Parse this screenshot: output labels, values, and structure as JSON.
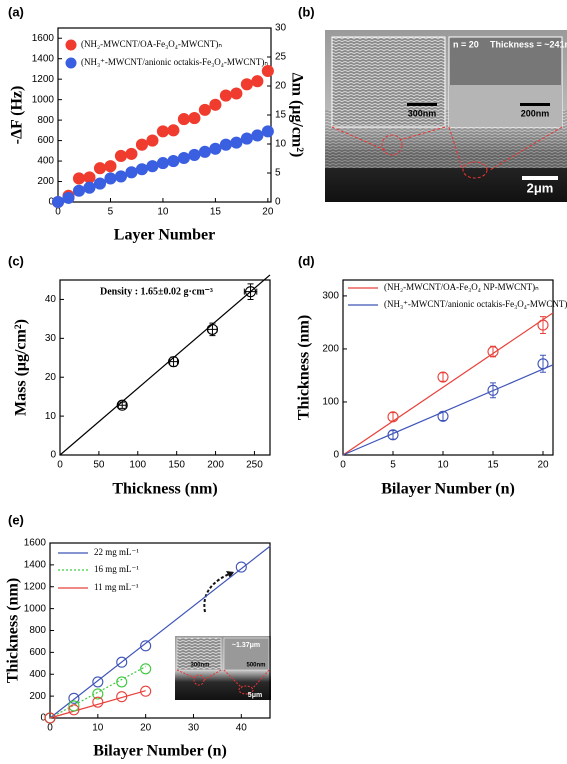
{
  "chart_data": [
    {
      "type": "scatter",
      "label": "(a)",
      "xlabel": "Layer Number",
      "ylabel": "-ΔF (Hz)",
      "y2label": "Δm (μg/cm²)",
      "xlim": [
        0,
        20.3
      ],
      "xticks": [
        0,
        5,
        10,
        15,
        20
      ],
      "ylim": [
        0,
        1700
      ],
      "yticks": [
        0,
        200,
        400,
        600,
        800,
        1000,
        1200,
        1400,
        1600
      ],
      "y2lim": [
        0,
        30
      ],
      "y2ticks": [
        0,
        5,
        10,
        15,
        20,
        25,
        30
      ],
      "legend": "upper left",
      "series": [
        {
          "name": "(NH₂-MWCNT/OA-Fe₃O₄-MWCNT)ₙ",
          "color": "#f03c2e",
          "marker": "filled",
          "x": [
            0,
            1,
            2,
            3,
            4,
            5,
            6,
            7,
            8,
            9,
            10,
            11,
            12,
            13,
            14,
            15,
            16,
            17,
            18,
            19,
            20
          ],
          "values": [
            0,
            60,
            230,
            240,
            330,
            350,
            450,
            470,
            560,
            600,
            690,
            700,
            810,
            820,
            900,
            950,
            1040,
            1060,
            1150,
            1180,
            1280
          ]
        },
        {
          "name": "(NH₃⁺-MWCNT/anionic octakis-Fe₃O₄-MWCNT)ₙ",
          "color": "#3a5fe0",
          "marker": "filled",
          "x": [
            0,
            1,
            2,
            3,
            4,
            5,
            6,
            7,
            8,
            9,
            10,
            11,
            12,
            13,
            14,
            15,
            16,
            17,
            18,
            19,
            20
          ],
          "values": [
            0,
            40,
            110,
            140,
            180,
            230,
            250,
            290,
            320,
            350,
            380,
            400,
            430,
            460,
            490,
            520,
            560,
            580,
            620,
            650,
            690
          ]
        }
      ]
    },
    {
      "type": "scatter",
      "label": "(c)",
      "xlabel": "Thickness (nm)",
      "ylabel": "Mass (μg/cm²)",
      "annotation": "Density : 1.65±0.02 g·cm⁻³",
      "xlim": [
        0,
        270
      ],
      "xticks": [
        0,
        50,
        100,
        150,
        200,
        250
      ],
      "ylim": [
        0,
        45
      ],
      "yticks": [
        0,
        10,
        20,
        30,
        40
      ],
      "series": [
        {
          "color": "#000000",
          "marker": "open",
          "x": [
            80,
            146,
            196,
            245
          ],
          "values": [
            12.8,
            24,
            32.3,
            42
          ],
          "errors": [
            0.8,
            1.2,
            1.6,
            2
          ],
          "x_errors": [
            5,
            5,
            6,
            8
          ]
        }
      ],
      "fit_lines": [
        {
          "color": "#000000",
          "x": [
            0,
            270
          ],
          "values": [
            0,
            46.3
          ]
        }
      ]
    },
    {
      "type": "scatter",
      "label": "(d)",
      "xlabel": "Bilayer Number (n)",
      "ylabel": "Thickness (nm)",
      "xlim": [
        0,
        21
      ],
      "xticks": [
        0,
        5,
        10,
        15,
        20
      ],
      "ylim": [
        0,
        330
      ],
      "yticks": [
        0,
        100,
        200,
        300
      ],
      "legend": "upper left",
      "series": [
        {
          "name": "(NH₂-MWCNT/OA-Fe₃O₄ NP-MWCNT)ₙ",
          "color": "#e8413a",
          "marker": "open",
          "x": [
            5,
            10,
            15,
            20
          ],
          "values": [
            72,
            147,
            195,
            245
          ],
          "errors": [
            8,
            8,
            10,
            16
          ]
        },
        {
          "name": "(NH₃⁺-MWCNT/anionic octakis-Fe₃O₄-MWCNT)ₙ",
          "color": "#3f54b8",
          "marker": "open",
          "x": [
            5,
            10,
            15,
            20
          ],
          "values": [
            38,
            73,
            122,
            172
          ],
          "errors": [
            8,
            8,
            14,
            16
          ]
        }
      ],
      "fit_lines": [
        {
          "color": "#e8413a",
          "x": [
            0,
            21
          ],
          "values": [
            0,
            268
          ]
        },
        {
          "color": "#3f54b8",
          "x": [
            0,
            21
          ],
          "values": [
            0,
            170
          ]
        }
      ]
    },
    {
      "type": "scatter",
      "label": "(e)",
      "xlabel": "Bilayer Number (n)",
      "ylabel": "Thickness (nm)",
      "xlim": [
        0,
        46
      ],
      "xticks": [
        0,
        10,
        20,
        30,
        40
      ],
      "ylim": [
        0,
        1600
      ],
      "yticks": [
        0,
        200,
        400,
        600,
        800,
        1000,
        1200,
        1400,
        1600
      ],
      "legend": "upper left",
      "inset_labels": [
        "300nm",
        "500nm",
        "~1.37μm",
        "5μm"
      ],
      "series": [
        {
          "name": "22 mg mL⁻¹",
          "color": "#3f54b8",
          "marker": "open",
          "x": [
            0,
            5,
            10,
            15,
            20,
            40
          ],
          "values": [
            0,
            180,
            330,
            510,
            660,
            1380
          ]
        },
        {
          "name": "16 mg mL⁻¹",
          "color": "#3ec93e",
          "marker": "open",
          "dash": true,
          "x": [
            0,
            5,
            10,
            15,
            20
          ],
          "values": [
            0,
            110,
            220,
            330,
            450
          ]
        },
        {
          "name": "11 mg mL⁻¹",
          "color": "#e8413a",
          "marker": "open",
          "x": [
            0,
            5,
            10,
            15,
            20
          ],
          "values": [
            0,
            75,
            145,
            195,
            245
          ]
        }
      ],
      "fit_lines": [
        {
          "color": "#3f54b8",
          "x": [
            0,
            46
          ],
          "values": [
            0,
            1570
          ]
        },
        {
          "color": "#3ec93e",
          "dash": true,
          "x": [
            0,
            20
          ],
          "values": [
            0,
            470
          ]
        },
        {
          "color": "#e8413a",
          "x": [
            0,
            20
          ],
          "values": [
            0,
            250
          ]
        }
      ]
    }
  ],
  "image_panel": {
    "label": "(b)",
    "inset_left": "300nm",
    "inset_right_n": "n = 20",
    "inset_right_thickness": "Thickness = ~241nm",
    "inset_right_scale": "200nm",
    "scale": "2μm"
  }
}
